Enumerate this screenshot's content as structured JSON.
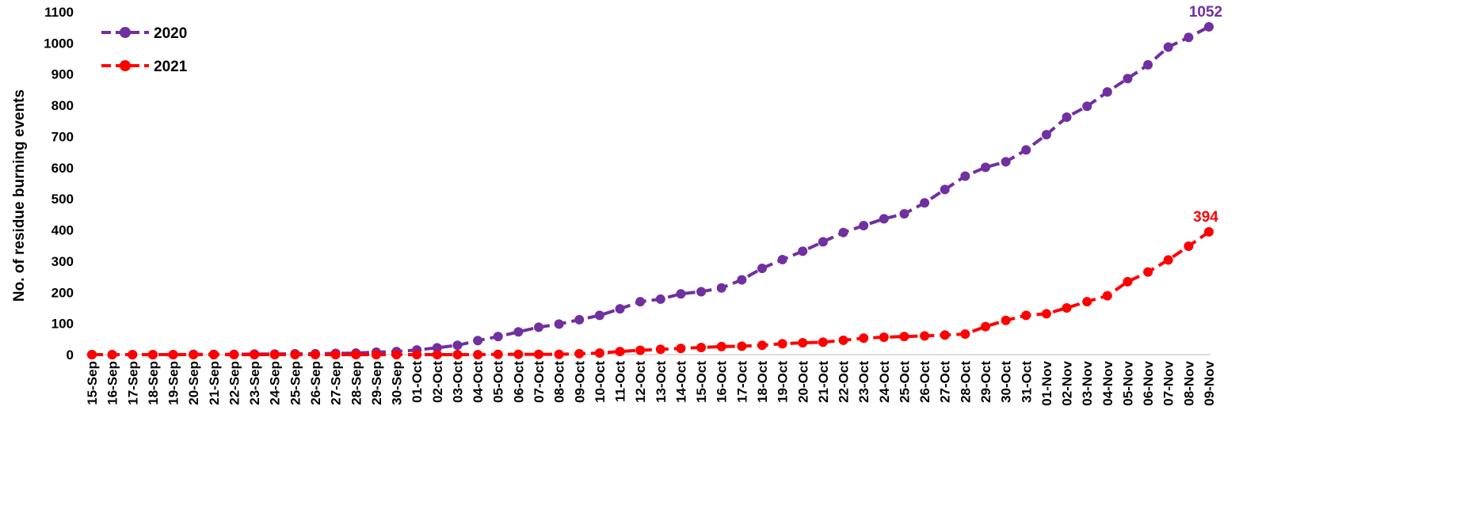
{
  "chart_data": {
    "type": "line",
    "title": "",
    "ylabel": "No. of residue burning events",
    "xlabel": "",
    "ylim": [
      0,
      1100
    ],
    "yticks": [
      0,
      100,
      200,
      300,
      400,
      500,
      600,
      700,
      800,
      900,
      1000,
      1100
    ],
    "grid": false,
    "legend_position": "top-left",
    "categories": [
      "15-Sep",
      "16-Sep",
      "17-Sep",
      "18-Sep",
      "19-Sep",
      "20-Sep",
      "21-Sep",
      "22-Sep",
      "23-Sep",
      "24-Sep",
      "25-Sep",
      "26-Sep",
      "27-Sep",
      "28-Sep",
      "29-Sep",
      "30-Sep",
      "01-Oct",
      "02-Oct",
      "03-Oct",
      "04-Oct",
      "05-Oct",
      "06-Oct",
      "07-Oct",
      "08-Oct",
      "09-Oct",
      "10-Oct",
      "11-Oct",
      "12-Oct",
      "13-Oct",
      "14-Oct",
      "15-Oct",
      "16-Oct",
      "17-Oct",
      "18-Oct",
      "19-Oct",
      "20-Oct",
      "21-Oct",
      "22-Oct",
      "23-Oct",
      "24-Oct",
      "25-Oct",
      "26-Oct",
      "27-Oct",
      "28-Oct",
      "29-Oct",
      "30-Oct",
      "31-Oct",
      "01-Nov",
      "02-Nov",
      "03-Nov",
      "04-Nov",
      "05-Nov",
      "06-Nov",
      "07-Nov",
      "08-Nov",
      "09-Nov"
    ],
    "series": [
      {
        "name": "2020",
        "color": "#7030a0",
        "values": [
          0,
          0,
          0,
          0,
          0,
          1,
          1,
          1,
          2,
          2,
          3,
          3,
          4,
          5,
          8,
          10,
          15,
          22,
          30,
          45,
          58,
          73,
          88,
          98,
          112,
          126,
          147,
          170,
          178,
          195,
          202,
          214,
          240,
          277,
          305,
          332,
          362,
          392,
          414,
          436,
          452,
          487,
          530,
          573,
          601,
          619,
          657,
          706,
          762,
          797,
          843,
          886,
          930,
          987,
          1018,
          1052
        ],
        "end_label": "1052"
      },
      {
        "name": "2021",
        "color": "#ff0000",
        "values": [
          0,
          0,
          0,
          0,
          0,
          0,
          0,
          0,
          0,
          0,
          0,
          0,
          0,
          0,
          0,
          0,
          0,
          0,
          0,
          0,
          1,
          1,
          1,
          1,
          3,
          5,
          10,
          14,
          17,
          20,
          23,
          26,
          27,
          30,
          35,
          38,
          40,
          46,
          53,
          56,
          58,
          60,
          63,
          66,
          90,
          110,
          126,
          131,
          150,
          170,
          189,
          234,
          265,
          304,
          348,
          394
        ],
        "end_label": "394"
      }
    ]
  }
}
